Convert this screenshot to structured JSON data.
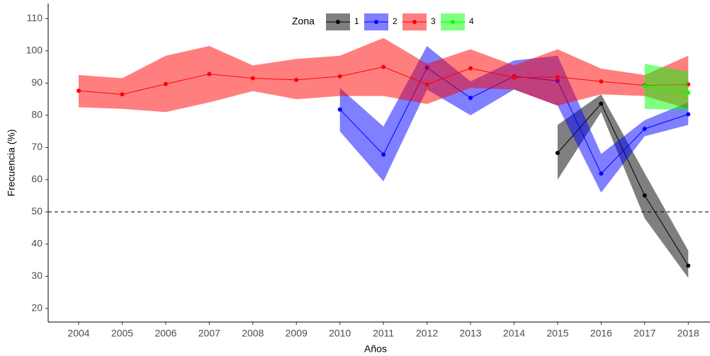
{
  "chart_data": {
    "type": "line",
    "x_label": "Años",
    "y_label": "Frecuencia (%)",
    "x": [
      2004,
      2005,
      2006,
      2007,
      2008,
      2009,
      2010,
      2011,
      2012,
      2013,
      2014,
      2015,
      2016,
      2017,
      2018
    ],
    "xlim": [
      2003.3,
      2018.5
    ],
    "xticks": [
      2004,
      2005,
      2006,
      2007,
      2008,
      2009,
      2010,
      2011,
      2012,
      2013,
      2014,
      2015,
      2016,
      2017,
      2018
    ],
    "ylim": [
      15.8,
      114.7
    ],
    "yticks": [
      20,
      30,
      40,
      50,
      60,
      70,
      80,
      90,
      100,
      110
    ],
    "hline": 50,
    "legend_title": "Zona",
    "legend_position": "top",
    "grid": false,
    "series": [
      {
        "name": "1",
        "color": "#000000",
        "values": [
          null,
          null,
          null,
          null,
          null,
          null,
          null,
          null,
          null,
          null,
          null,
          68.3,
          83.6,
          55.1,
          33.3
        ],
        "lower": [
          null,
          null,
          null,
          null,
          null,
          null,
          null,
          null,
          null,
          null,
          null,
          60,
          81,
          48,
          29.5
        ],
        "upper": [
          null,
          null,
          null,
          null,
          null,
          null,
          null,
          null,
          null,
          null,
          null,
          77,
          86.5,
          62,
          38
        ]
      },
      {
        "name": "2",
        "color": "#0000ff",
        "values": [
          null,
          null,
          null,
          null,
          null,
          null,
          81.8,
          67.8,
          94.8,
          85.4,
          92.1,
          90.7,
          61.9,
          75.8,
          80.3
        ],
        "lower": [
          null,
          null,
          null,
          null,
          null,
          null,
          75,
          59.5,
          88,
          80,
          88,
          83,
          56,
          73.5,
          77
        ],
        "upper": [
          null,
          null,
          null,
          null,
          null,
          null,
          88.5,
          76.5,
          101.5,
          90.5,
          97,
          98.5,
          68,
          78.5,
          84
        ]
      },
      {
        "name": "3",
        "color": "#ff0000",
        "values": [
          87.6,
          86.5,
          89.7,
          92.8,
          91.5,
          91.0,
          92.1,
          95.0,
          89.6,
          94.6,
          91.7,
          91.9,
          90.5,
          89.3,
          89.6
        ],
        "lower": [
          82.5,
          82,
          81,
          84,
          87.5,
          85,
          86,
          86,
          83.5,
          88.5,
          88,
          83,
          86.5,
          86,
          82
        ],
        "upper": [
          92.5,
          91.5,
          98.5,
          101.5,
          95.5,
          97.5,
          98.5,
          104,
          96,
          100.5,
          95.5,
          100.5,
          94.5,
          92.5,
          98.5
        ]
      },
      {
        "name": "4",
        "color": "#00ff00",
        "values": [
          null,
          null,
          null,
          null,
          null,
          null,
          null,
          null,
          null,
          null,
          null,
          null,
          null,
          89,
          87
        ],
        "lower": [
          null,
          null,
          null,
          null,
          null,
          null,
          null,
          null,
          null,
          null,
          null,
          null,
          null,
          82,
          81.5
        ],
        "upper": [
          null,
          null,
          null,
          null,
          null,
          null,
          null,
          null,
          null,
          null,
          null,
          null,
          null,
          96,
          93.5
        ]
      }
    ]
  }
}
